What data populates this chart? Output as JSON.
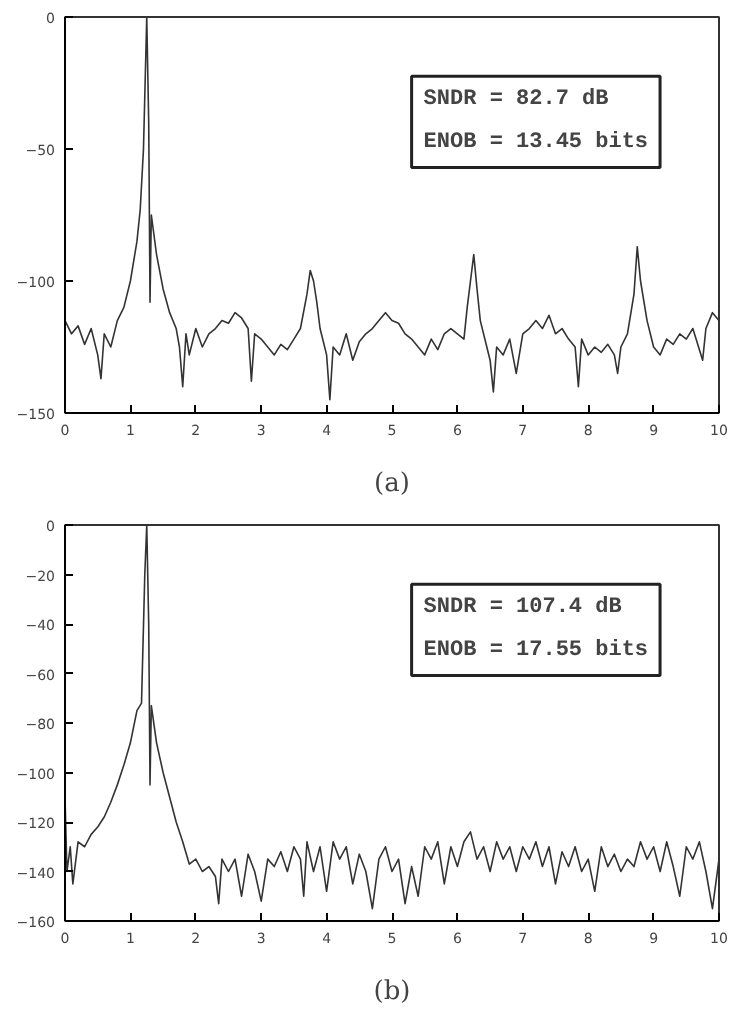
{
  "chart_data": [
    {
      "type": "line",
      "xlabel": "(a)",
      "xlim": [
        0,
        10
      ],
      "ylim": [
        -150,
        0
      ],
      "xticks": [
        0,
        1,
        2,
        3,
        4,
        5,
        6,
        7,
        8,
        9,
        10
      ],
      "yticks": [
        0,
        -50,
        -100,
        -150
      ],
      "grid": false,
      "marker": "none",
      "line_style": "solid",
      "annotations": [
        "SNDR = 82.7 dB",
        "ENOB = 13.45 bits"
      ],
      "x": [
        0,
        0.1,
        0.2,
        0.3,
        0.4,
        0.5,
        0.55,
        0.6,
        0.7,
        0.8,
        0.9,
        1.0,
        1.1,
        1.15,
        1.2,
        1.25,
        1.28,
        1.3,
        1.32,
        1.4,
        1.5,
        1.6,
        1.7,
        1.75,
        1.8,
        1.85,
        1.9,
        2.0,
        2.1,
        2.2,
        2.3,
        2.4,
        2.5,
        2.6,
        2.7,
        2.8,
        2.85,
        2.9,
        3.0,
        3.1,
        3.2,
        3.3,
        3.4,
        3.5,
        3.6,
        3.7,
        3.75,
        3.8,
        3.85,
        3.9,
        4.0,
        4.05,
        4.1,
        4.2,
        4.3,
        4.4,
        4.5,
        4.6,
        4.7,
        4.8,
        4.9,
        5.0,
        5.1,
        5.2,
        5.3,
        5.4,
        5.5,
        5.6,
        5.7,
        5.8,
        5.9,
        6.0,
        6.1,
        6.15,
        6.2,
        6.25,
        6.3,
        6.35,
        6.45,
        6.5,
        6.55,
        6.6,
        6.7,
        6.8,
        6.9,
        7.0,
        7.1,
        7.2,
        7.3,
        7.4,
        7.5,
        7.6,
        7.7,
        7.8,
        7.85,
        7.9,
        8.0,
        8.1,
        8.2,
        8.3,
        8.4,
        8.45,
        8.5,
        8.6,
        8.7,
        8.75,
        8.8,
        8.9,
        9.0,
        9.1,
        9.2,
        9.3,
        9.4,
        9.5,
        9.6,
        9.75,
        9.8,
        9.9,
        10.0
      ],
      "series": [
        {
          "color": "#333333",
          "values": [
            -115,
            -120,
            -117,
            -124,
            -118,
            -128,
            -137,
            -120,
            -125,
            -115,
            -110,
            -100,
            -85,
            -73,
            -50,
            0,
            -40,
            -108,
            -75,
            -90,
            -103,
            -112,
            -118,
            -125,
            -140,
            -120,
            -128,
            -118,
            -125,
            -120,
            -118,
            -115,
            -116,
            -112,
            -114,
            -118,
            -138,
            -120,
            -122,
            -125,
            -128,
            -124,
            -126,
            -122,
            -118,
            -105,
            -96,
            -100,
            -108,
            -118,
            -128,
            -145,
            -125,
            -128,
            -120,
            -130,
            -123,
            -120,
            -118,
            -115,
            -112,
            -115,
            -116,
            -120,
            -122,
            -125,
            -128,
            -122,
            -126,
            -120,
            -118,
            -120,
            -122,
            -110,
            -100,
            -90,
            -103,
            -115,
            -125,
            -130,
            -142,
            -125,
            -128,
            -122,
            -135,
            -120,
            -118,
            -115,
            -118,
            -113,
            -120,
            -118,
            -122,
            -125,
            -140,
            -122,
            -128,
            -125,
            -127,
            -124,
            -128,
            -135,
            -125,
            -120,
            -105,
            -87,
            -100,
            -115,
            -125,
            -128,
            -122,
            -124,
            -120,
            -122,
            -118,
            -130,
            -118,
            -112,
            -115
          ]
        }
      ]
    },
    {
      "type": "line",
      "xlabel": "(b)",
      "xlim": [
        0,
        10
      ],
      "ylim": [
        -160,
        0
      ],
      "xticks": [
        0,
        1,
        2,
        3,
        4,
        5,
        6,
        7,
        8,
        9,
        10
      ],
      "yticks": [
        0,
        -20,
        -40,
        -60,
        -80,
        -100,
        -120,
        -140,
        -160
      ],
      "grid": false,
      "marker": "none",
      "line_style": "solid",
      "annotations": [
        "SNDR = 107.4 dB",
        "ENOB = 17.55 bits"
      ],
      "x": [
        0,
        0.03,
        0.08,
        0.12,
        0.2,
        0.3,
        0.4,
        0.5,
        0.6,
        0.7,
        0.8,
        0.9,
        1.0,
        1.1,
        1.17,
        1.22,
        1.25,
        1.28,
        1.3,
        1.32,
        1.4,
        1.5,
        1.6,
        1.7,
        1.8,
        1.9,
        2.0,
        2.1,
        2.2,
        2.3,
        2.35,
        2.4,
        2.5,
        2.6,
        2.7,
        2.8,
        2.9,
        3.0,
        3.1,
        3.2,
        3.3,
        3.4,
        3.5,
        3.6,
        3.65,
        3.7,
        3.8,
        3.9,
        4.0,
        4.1,
        4.2,
        4.3,
        4.4,
        4.5,
        4.6,
        4.7,
        4.8,
        4.9,
        5.0,
        5.1,
        5.2,
        5.3,
        5.4,
        5.5,
        5.6,
        5.7,
        5.8,
        5.9,
        6.0,
        6.1,
        6.2,
        6.3,
        6.4,
        6.5,
        6.6,
        6.7,
        6.8,
        6.9,
        7.0,
        7.1,
        7.2,
        7.3,
        7.4,
        7.5,
        7.6,
        7.7,
        7.8,
        7.9,
        8.0,
        8.1,
        8.2,
        8.3,
        8.4,
        8.5,
        8.6,
        8.7,
        8.8,
        8.9,
        9.0,
        9.1,
        9.2,
        9.3,
        9.4,
        9.5,
        9.6,
        9.7,
        9.8,
        9.9,
        10.0
      ],
      "series": [
        {
          "color": "#333333",
          "values": [
            -110,
            -140,
            -130,
            -145,
            -128,
            -130,
            -125,
            -122,
            -118,
            -112,
            -105,
            -97,
            -88,
            -75,
            -72,
            -20,
            0,
            -40,
            -105,
            -73,
            -88,
            -100,
            -110,
            -120,
            -128,
            -137,
            -135,
            -140,
            -138,
            -142,
            -153,
            -135,
            -140,
            -135,
            -150,
            -133,
            -140,
            -152,
            -135,
            -138,
            -132,
            -140,
            -130,
            -135,
            -150,
            -128,
            -140,
            -130,
            -148,
            -128,
            -135,
            -130,
            -145,
            -133,
            -140,
            -155,
            -135,
            -130,
            -140,
            -135,
            -153,
            -138,
            -150,
            -130,
            -135,
            -128,
            -145,
            -130,
            -138,
            -128,
            -124,
            -135,
            -130,
            -140,
            -128,
            -135,
            -130,
            -140,
            -130,
            -135,
            -128,
            -138,
            -130,
            -145,
            -132,
            -138,
            -130,
            -140,
            -135,
            -148,
            -130,
            -138,
            -133,
            -140,
            -135,
            -138,
            -128,
            -135,
            -130,
            -140,
            -128,
            -138,
            -150,
            -130,
            -135,
            -128,
            -140,
            -155,
            -135
          ]
        }
      ]
    }
  ]
}
